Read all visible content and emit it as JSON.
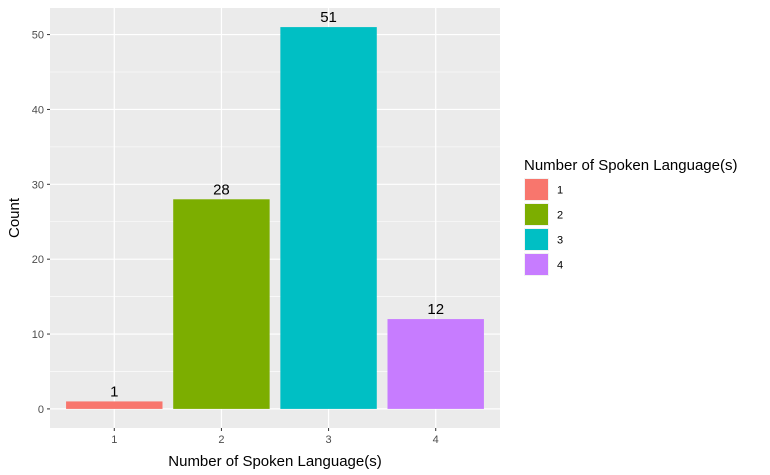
{
  "chart_data": {
    "type": "bar",
    "xlabel": "Number of Spoken Language(s)",
    "ylabel": "Count",
    "categories": [
      "1",
      "2",
      "3",
      "4"
    ],
    "values": [
      1,
      28,
      51,
      12
    ],
    "data_labels": [
      "1",
      "28",
      "51",
      "12"
    ],
    "colors": [
      "#F8766D",
      "#7CAE00",
      "#00BFC4",
      "#C77CFF"
    ],
    "ylim": [
      -2.55,
      53.55
    ],
    "yticks": [
      0,
      10,
      20,
      30,
      40,
      50
    ],
    "ytick_labels": [
      "0",
      "10",
      "20",
      "30",
      "40",
      "50"
    ],
    "grid": true,
    "legend": {
      "title": "Number of Spoken Language(s)",
      "position": "right",
      "items": [
        "1",
        "2",
        "3",
        "4"
      ]
    },
    "panel_background": "#EBEBEB"
  }
}
